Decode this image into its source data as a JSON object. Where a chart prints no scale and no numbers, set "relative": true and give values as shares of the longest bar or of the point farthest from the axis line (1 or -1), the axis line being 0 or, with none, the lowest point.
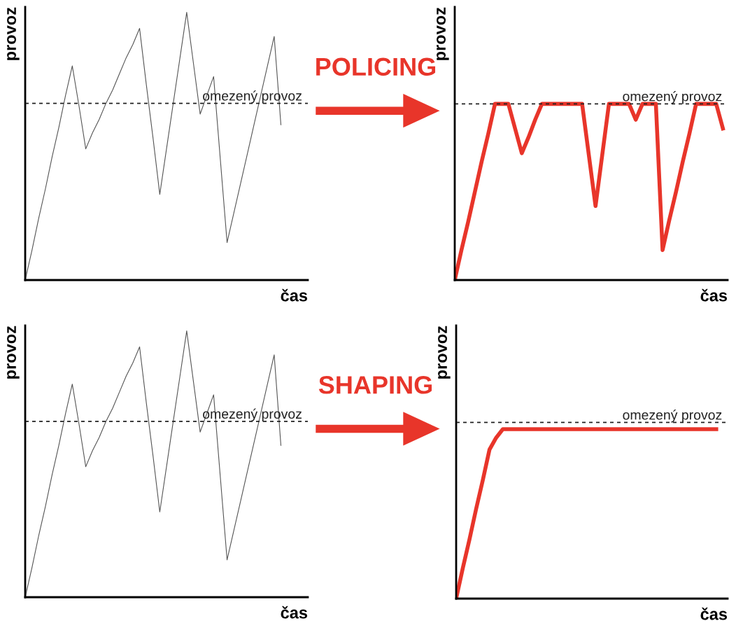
{
  "chart_data": [
    {
      "type": "line",
      "relative": true,
      "xlabel": "čas",
      "ylabel": "provoz",
      "annotations": [
        "POLICING"
      ],
      "categories": [
        null,
        null,
        null,
        null,
        null,
        null,
        null,
        null,
        null,
        null,
        null,
        null,
        null,
        null,
        null,
        null,
        null,
        null,
        null,
        null,
        null,
        null,
        null,
        null,
        null,
        null,
        null,
        null,
        null,
        null,
        null,
        null,
        null,
        null,
        null,
        null,
        null,
        null,
        null,
        null,
        null
      ],
      "series": [
        {
          "color": "#555555",
          "values": [
            0,
            0.11,
            0.23,
            0.34,
            0.46,
            0.57,
            0.69,
            0.8,
            0.65,
            0.49,
            0.55,
            0.6,
            0.66,
            0.71,
            0.77,
            0.83,
            0.88,
            0.94,
            0.73,
            0.53,
            0.32,
            0.49,
            0.66,
            0.83,
            1,
            0.81,
            0.62,
            0.69,
            0.76,
            0.45,
            0.14,
            0.25,
            0.36,
            0.47,
            0.58,
            0.69,
            0.8,
            0.91,
            0.58,
            null,
            null
          ]
        }
      ],
      "ref_lines": [
        {
          "axis": "y",
          "value": 0.66,
          "label": "omezený provoz",
          "color": "#222222",
          "line_style": "dashed"
        }
      ]
    },
    {
      "type": "line",
      "relative": true,
      "xlabel": "čas",
      "ylabel": "provoz",
      "categories": [
        null,
        null,
        null,
        null,
        null,
        null,
        null,
        null,
        null,
        null,
        null,
        null,
        null,
        null,
        null,
        null,
        null,
        null,
        null,
        null,
        null,
        null,
        null,
        null,
        null,
        null,
        null,
        null,
        null,
        null,
        null,
        null,
        null,
        null,
        null,
        null,
        null,
        null,
        null,
        null,
        null
      ],
      "series": [
        {
          "color": "#e8352a",
          "values": [
            0,
            0.17,
            0.33,
            0.5,
            0.67,
            0.83,
            1,
            1,
            1,
            0.86,
            0.72,
            0.81,
            0.91,
            1,
            1,
            1,
            1,
            1,
            1,
            1,
            0.71,
            0.42,
            0.71,
            1,
            1,
            1,
            1,
            0.91,
            1,
            1,
            1,
            0.17,
            0.34,
            0.5,
            0.67,
            0.83,
            1,
            1,
            1,
            1,
            0.86
          ]
        }
      ],
      "ref_lines": [
        {
          "axis": "y",
          "value": 1,
          "label": "omezený provoz",
          "color": "#222222",
          "line_style": "dashed"
        }
      ]
    },
    {
      "type": "line",
      "relative": true,
      "xlabel": "čas",
      "ylabel": "provoz",
      "annotations": [
        "SHAPING"
      ],
      "categories": [
        null,
        null,
        null,
        null,
        null,
        null,
        null,
        null,
        null,
        null,
        null,
        null,
        null,
        null,
        null,
        null,
        null,
        null,
        null,
        null,
        null,
        null,
        null,
        null,
        null,
        null,
        null,
        null,
        null,
        null,
        null,
        null,
        null,
        null,
        null,
        null,
        null,
        null,
        null,
        null,
        null
      ],
      "series": [
        {
          "color": "#555555",
          "values": [
            0,
            0.11,
            0.23,
            0.34,
            0.46,
            0.57,
            0.69,
            0.8,
            0.65,
            0.49,
            0.55,
            0.6,
            0.66,
            0.71,
            0.77,
            0.83,
            0.88,
            0.94,
            0.73,
            0.53,
            0.32,
            0.49,
            0.66,
            0.83,
            1,
            0.81,
            0.62,
            0.69,
            0.76,
            0.45,
            0.14,
            0.25,
            0.36,
            0.47,
            0.58,
            0.69,
            0.8,
            0.91,
            0.57,
            null,
            null
          ]
        }
      ],
      "ref_lines": [
        {
          "axis": "y",
          "value": 0.66,
          "label": "omezený provoz",
          "color": "#222222",
          "line_style": "dashed"
        }
      ]
    },
    {
      "type": "line",
      "relative": true,
      "xlabel": "čas",
      "ylabel": "provoz",
      "categories": [
        null,
        null,
        null,
        null,
        null,
        null,
        null,
        null,
        null,
        null,
        null,
        null,
        null,
        null,
        null,
        null,
        null,
        null,
        null,
        null,
        null,
        null,
        null,
        null,
        null,
        null,
        null,
        null,
        null,
        null,
        null,
        null,
        null,
        null,
        null,
        null,
        null,
        null,
        null,
        null,
        null
      ],
      "series": [
        {
          "color": "#e8352a",
          "values": [
            0,
            0.18,
            0.35,
            0.53,
            0.7,
            0.88,
            0.95,
            1,
            1,
            1,
            1,
            1,
            1,
            1,
            1,
            1,
            1,
            1,
            1,
            1,
            1,
            1,
            1,
            1,
            1,
            1,
            1,
            1,
            1,
            1,
            1,
            1,
            1,
            1,
            1,
            1,
            1,
            1,
            1,
            1,
            null
          ]
        }
      ],
      "ref_lines": [
        {
          "axis": "y",
          "value": 1.04,
          "label": "omezený provoz",
          "color": "#222222",
          "line_style": "dashed"
        }
      ]
    }
  ]
}
